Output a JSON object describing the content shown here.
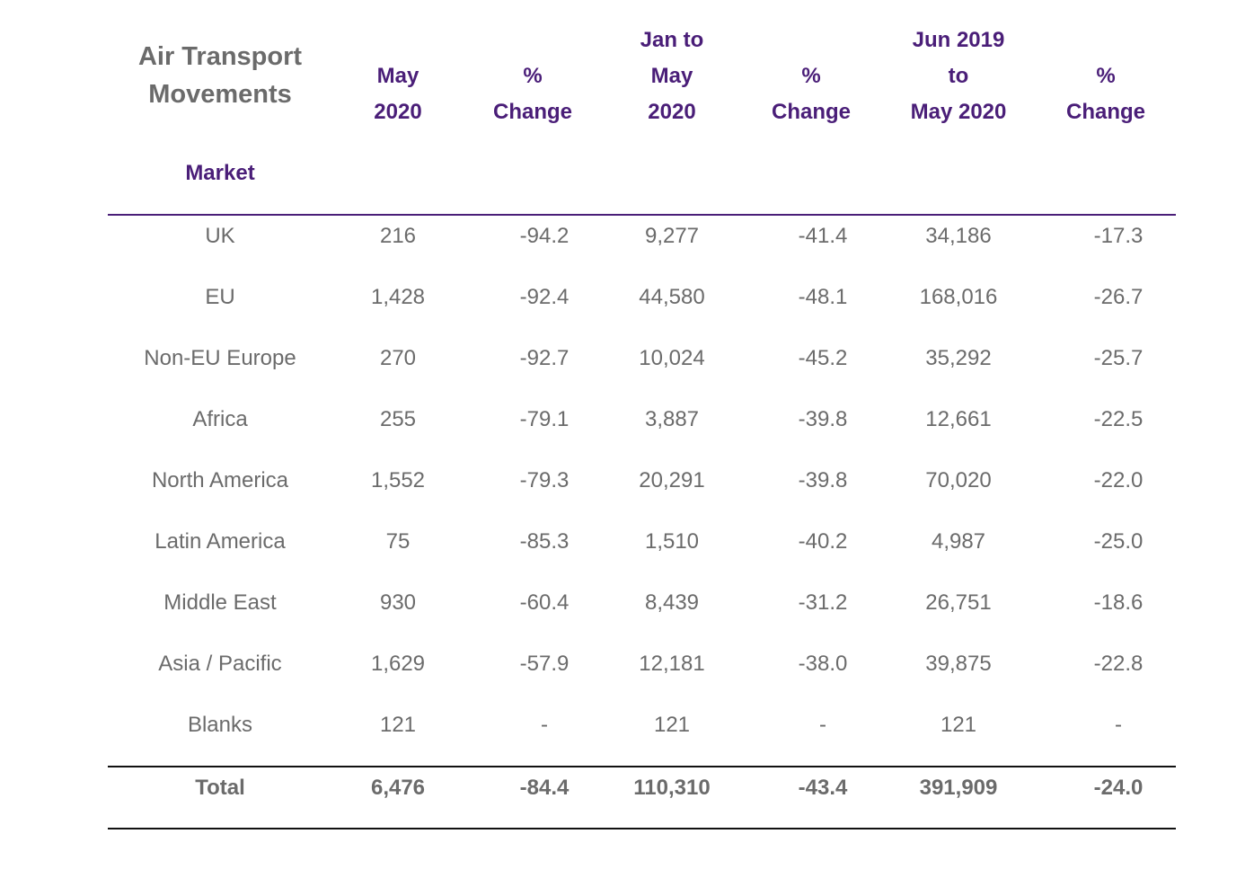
{
  "table": {
    "title_lines": [
      "Air Transport",
      "Movements"
    ],
    "market_label": "Market",
    "headers": [
      [
        "May",
        "2020"
      ],
      [
        "%",
        "Change"
      ],
      [
        "Jan to",
        "May",
        "2020"
      ],
      [
        "%",
        "Change"
      ],
      [
        "Jun 2019",
        "to",
        "May 2020"
      ],
      [
        "%",
        "Change"
      ]
    ],
    "rows": [
      [
        "UK",
        "216",
        "-94.2",
        "9,277",
        "-41.4",
        "34,186",
        "-17.3"
      ],
      [
        "EU",
        "1,428",
        "-92.4",
        "44,580",
        "-48.1",
        "168,016",
        "-26.7"
      ],
      [
        "Non-EU Europe",
        "270",
        "-92.7",
        "10,024",
        "-45.2",
        "35,292",
        "-25.7"
      ],
      [
        "Africa",
        "255",
        "-79.1",
        "3,887",
        "-39.8",
        "12,661",
        "-22.5"
      ],
      [
        "North America",
        "1,552",
        "-79.3",
        "20,291",
        "-39.8",
        "70,020",
        "-22.0"
      ],
      [
        "Latin America",
        "75",
        "-85.3",
        "1,510",
        "-40.2",
        "4,987",
        "-25.0"
      ],
      [
        "Middle East",
        "930",
        "-60.4",
        "8,439",
        "-31.2",
        "26,751",
        "-18.6"
      ],
      [
        "Asia / Pacific",
        "1,629",
        "-57.9",
        "12,181",
        "-38.0",
        "39,875",
        "-22.8"
      ],
      [
        "Blanks",
        "121",
        "-",
        "121",
        "-",
        "121",
        "-"
      ]
    ],
    "total": [
      "Total",
      "6,476",
      "-84.4",
      "110,310",
      "-43.4",
      "391,909",
      "-24.0"
    ]
  },
  "colors": {
    "header_purple": "#4a1e78",
    "body_gray": "#6b6b6b",
    "rule_black": "#111111"
  }
}
